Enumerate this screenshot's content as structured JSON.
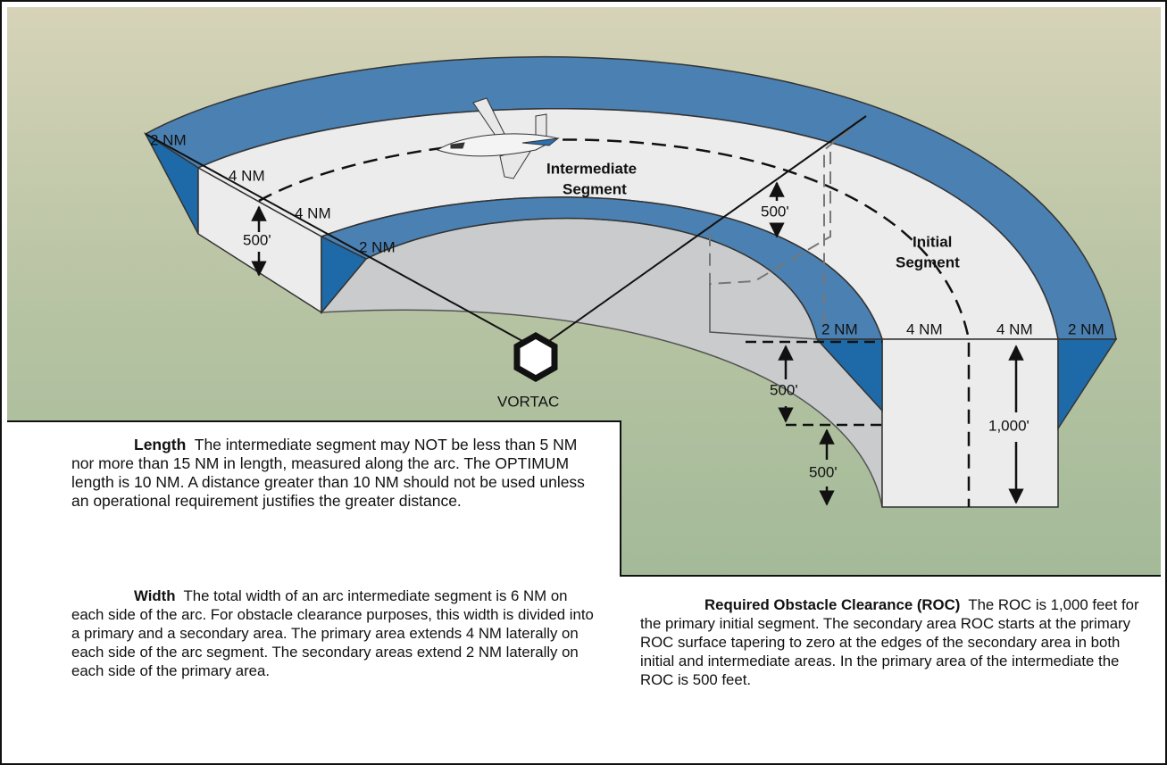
{
  "labels": [
    "2 NM",
    "4 NM",
    "4 NM",
    "500'",
    "2 NM",
    "Intermediate",
    "Segment",
    "500'",
    "Initial",
    "Segment",
    "VORTAC",
    "2 NM",
    "4 NM",
    "4 NM",
    "2 NM",
    "500'",
    "500'",
    "1,000'"
  ],
  "paragraphs": {
    "length": {
      "heading": "Length",
      "text": "The intermediate segment may NOT be less than 5 NM nor more than 15 NM in length, measured along the arc. The OPTIMUM length is 10 NM. A distance greater than 10 NM should not be used unless an operational requirement justifies the greater distance."
    },
    "width": {
      "heading": "Width",
      "text": "The total width of an arc intermediate segment is 6 NM on each side of the arc. For obstacle clearance purposes, this width is divided into a primary and a secondary area. The primary area extends 4 NM laterally on each side of the arc segment. The secondary areas extend 2 NM laterally on each side of the primary area."
    },
    "roc": {
      "heading": "Required Obstacle Clearance (ROC)",
      "text": "The ROC is 1,000 feet for the primary initial segment. The secondary area ROC starts at the primary ROC surface tapering to zero at the edges of the secondary area in both initial and intermediate areas. In the primary area of the intermediate the ROC is 500 feet."
    }
  }
}
